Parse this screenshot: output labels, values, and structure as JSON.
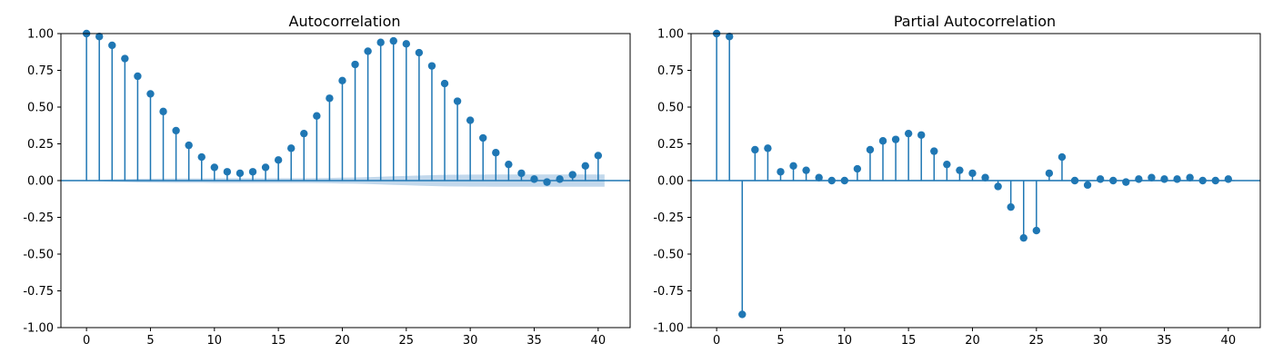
{
  "chart_data": [
    {
      "type": "stem",
      "title": "Autocorrelation",
      "xlabel": "",
      "ylabel": "",
      "xlim": [
        -2,
        42.5
      ],
      "ylim": [
        -1.0,
        1.0
      ],
      "xticks": [
        "0",
        "10",
        "15",
        "20",
        "25",
        "30",
        "35",
        "40",
        "5"
      ],
      "yticks": [
        "1.00",
        "0.75",
        "0.50",
        "0.25",
        "0.00",
        "-0.25",
        "-0.50",
        "-0.75",
        "-1.00"
      ],
      "grid": false,
      "color": "#1f77b4",
      "band_color": "#aecbe6",
      "lags": [
        0,
        1,
        2,
        3,
        4,
        5,
        6,
        7,
        8,
        9,
        10,
        11,
        12,
        13,
        14,
        15,
        16,
        17,
        18,
        19,
        20,
        21,
        22,
        23,
        24,
        25,
        26,
        27,
        28,
        29,
        30,
        31,
        32,
        33,
        34,
        35,
        36,
        37,
        38,
        39,
        40
      ],
      "values": [
        1.0,
        0.98,
        0.92,
        0.83,
        0.71,
        0.59,
        0.47,
        0.34,
        0.24,
        0.16,
        0.09,
        0.06,
        0.05,
        0.06,
        0.09,
        0.14,
        0.22,
        0.32,
        0.44,
        0.56,
        0.68,
        0.79,
        0.88,
        0.94,
        0.95,
        0.93,
        0.87,
        0.78,
        0.66,
        0.54,
        0.41,
        0.29,
        0.19,
        0.11,
        0.05,
        0.01,
        -0.01,
        0.01,
        0.04,
        0.1,
        0.17
      ],
      "confidence_band": [
        0.0,
        0.005,
        0.008,
        0.01,
        0.012,
        0.013,
        0.014,
        0.015,
        0.015,
        0.015,
        0.016,
        0.016,
        0.016,
        0.016,
        0.016,
        0.016,
        0.016,
        0.016,
        0.017,
        0.018,
        0.02,
        0.021,
        0.023,
        0.026,
        0.029,
        0.032,
        0.035,
        0.037,
        0.039,
        0.04,
        0.041,
        0.041,
        0.042,
        0.042,
        0.042,
        0.042,
        0.042,
        0.042,
        0.042,
        0.042,
        0.042
      ]
    },
    {
      "type": "stem",
      "title": "Partial Autocorrelation",
      "xlabel": "",
      "ylabel": "",
      "xlim": [
        -2,
        42.5
      ],
      "ylim": [
        -1.0,
        1.0
      ],
      "xticks": [
        "0",
        "10",
        "15",
        "20",
        "25",
        "30",
        "35",
        "40",
        "5"
      ],
      "yticks": [
        "1.00",
        "0.75",
        "0.50",
        "0.25",
        "0.00",
        "-0.25",
        "-0.50",
        "-0.75",
        "-1.00"
      ],
      "grid": false,
      "color": "#1f77b4",
      "band_color": "#aecbe6",
      "lags": [
        0,
        1,
        2,
        3,
        4,
        5,
        6,
        7,
        8,
        9,
        10,
        11,
        12,
        13,
        14,
        15,
        16,
        17,
        18,
        19,
        20,
        21,
        22,
        23,
        24,
        25,
        26,
        27,
        28,
        29,
        30,
        31,
        32,
        33,
        34,
        35,
        36,
        37,
        38,
        39,
        40
      ],
      "values": [
        1.0,
        0.98,
        -0.91,
        0.21,
        0.22,
        0.06,
        0.1,
        0.07,
        0.02,
        0.0,
        0.0,
        0.08,
        0.21,
        0.27,
        0.28,
        0.32,
        0.31,
        0.2,
        0.11,
        0.07,
        0.05,
        0.02,
        -0.04,
        -0.18,
        -0.39,
        -0.34,
        0.05,
        0.16,
        0.0,
        -0.03,
        0.01,
        0.0,
        -0.01,
        0.01,
        0.02,
        0.01,
        0.01,
        0.02,
        0.0,
        0.0,
        0.01
      ],
      "confidence_band": [
        0.0,
        0.005,
        0.005,
        0.005,
        0.005,
        0.005,
        0.005,
        0.005,
        0.005,
        0.005,
        0.005,
        0.005,
        0.005,
        0.005,
        0.005,
        0.005,
        0.005,
        0.005,
        0.005,
        0.005,
        0.005,
        0.005,
        0.005,
        0.005,
        0.005,
        0.005,
        0.005,
        0.005,
        0.005,
        0.005,
        0.005,
        0.005,
        0.005,
        0.005,
        0.005,
        0.005,
        0.005,
        0.005,
        0.005,
        0.005,
        0.005
      ]
    }
  ]
}
